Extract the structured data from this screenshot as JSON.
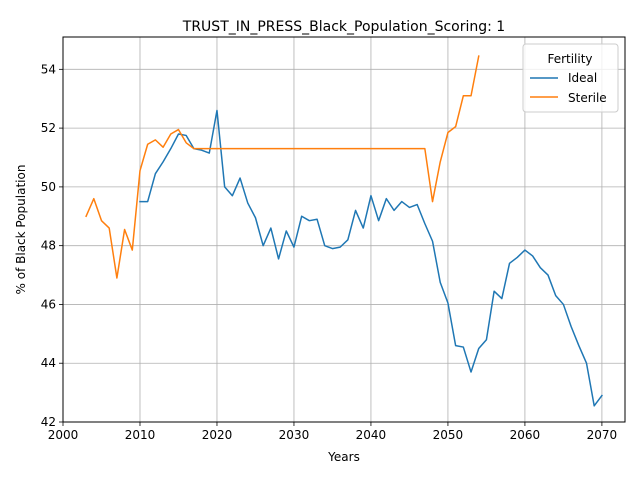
{
  "chart_data": {
    "type": "line",
    "title": "TRUST_IN_PRESS_Black_Population_Scoring: 1",
    "xlabel": "Years",
    "ylabel": "% of Black Population",
    "xlim": [
      2000,
      2073
    ],
    "ylim": [
      42,
      55.1
    ],
    "xticks": [
      2000,
      2010,
      2020,
      2030,
      2040,
      2050,
      2060,
      2070
    ],
    "yticks": [
      42,
      44,
      46,
      48,
      50,
      52,
      54
    ],
    "grid": true,
    "legend": {
      "title": "Fertility",
      "placement": "top-right"
    },
    "series": [
      {
        "name": "Ideal",
        "color": "#1f77b4",
        "x": [
          2010,
          2011,
          2012,
          2013,
          2014,
          2015,
          2016,
          2017,
          2018,
          2019,
          2020,
          2021,
          2022,
          2023,
          2024,
          2025,
          2026,
          2027,
          2028,
          2029,
          2030,
          2031,
          2032,
          2033,
          2034,
          2035,
          2036,
          2037,
          2038,
          2039,
          2040,
          2041,
          2042,
          2043,
          2044,
          2045,
          2046,
          2047,
          2048,
          2049,
          2050,
          2051,
          2052,
          2053,
          2054,
          2055,
          2056,
          2057,
          2058,
          2059,
          2060,
          2061,
          2062,
          2063,
          2064,
          2065,
          2066,
          2067,
          2068,
          2069,
          2070
        ],
        "values": [
          49.5,
          49.5,
          50.45,
          50.85,
          51.3,
          51.8,
          51.75,
          51.3,
          51.25,
          51.15,
          52.6,
          50.0,
          49.7,
          50.3,
          49.45,
          48.95,
          48.0,
          48.6,
          47.55,
          48.5,
          47.95,
          49.0,
          48.85,
          48.9,
          48.0,
          47.9,
          47.95,
          48.2,
          49.2,
          48.6,
          49.7,
          48.85,
          49.6,
          49.2,
          49.5,
          49.3,
          49.4,
          48.75,
          48.15,
          46.75,
          46.05,
          44.6,
          44.55,
          43.7,
          44.5,
          44.8,
          46.45,
          46.2,
          47.4,
          47.6,
          47.85,
          47.65,
          47.25,
          47.0,
          46.3,
          46.0,
          45.25,
          44.6,
          44.0,
          42.55,
          42.9
        ]
      },
      {
        "name": "Sterile",
        "color": "#ff7f0e",
        "x": [
          2003,
          2004,
          2005,
          2006,
          2007,
          2008,
          2009,
          2010,
          2011,
          2012,
          2013,
          2014,
          2015,
          2016,
          2017,
          2018,
          2019,
          2020,
          2021,
          2022,
          2023,
          2024,
          2025,
          2026,
          2027,
          2028,
          2029,
          2030,
          2031,
          2032,
          2033,
          2034,
          2035,
          2036,
          2037,
          2038,
          2039,
          2040,
          2041,
          2042,
          2043,
          2044,
          2045,
          2046,
          2047,
          2048,
          2049,
          2050,
          2051,
          2052,
          2053,
          2054
        ],
        "values": [
          49.0,
          49.6,
          48.85,
          48.6,
          46.9,
          48.55,
          47.85,
          50.55,
          51.45,
          51.6,
          51.35,
          51.8,
          51.95,
          51.5,
          51.3,
          51.3,
          51.3,
          51.3,
          51.3,
          51.3,
          51.3,
          51.3,
          51.3,
          51.3,
          51.3,
          51.3,
          51.3,
          51.3,
          51.3,
          51.3,
          51.3,
          51.3,
          51.3,
          51.3,
          51.3,
          51.3,
          51.3,
          51.3,
          51.3,
          51.3,
          51.3,
          51.3,
          51.3,
          51.3,
          51.3,
          49.5,
          50.85,
          51.85,
          52.05,
          53.1,
          53.1,
          54.45
        ]
      }
    ]
  }
}
